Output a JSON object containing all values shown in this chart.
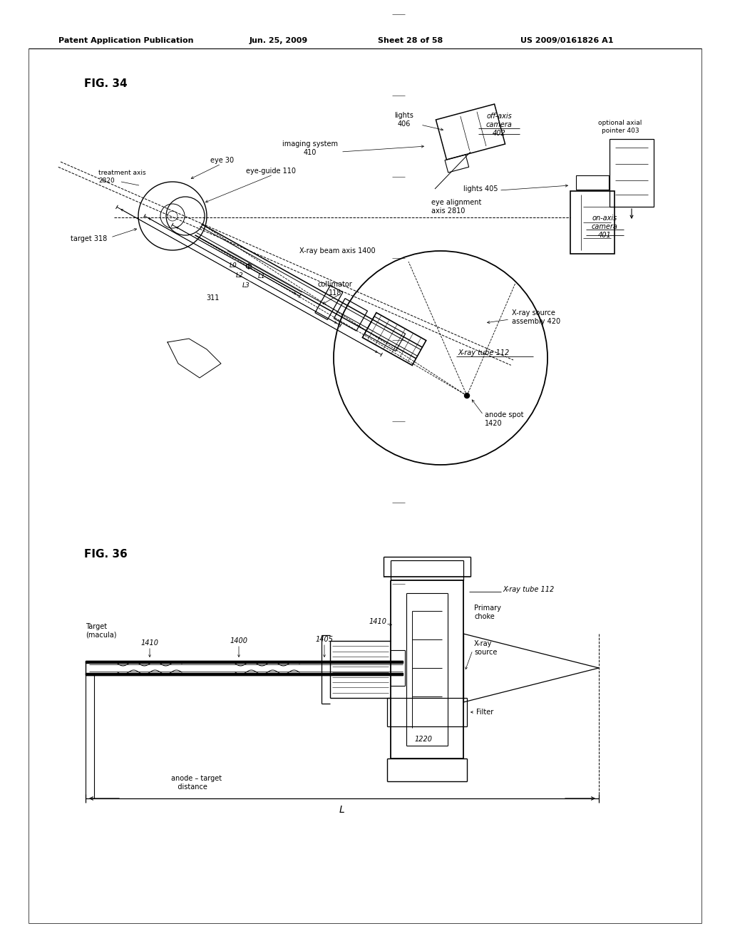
{
  "background_color": "#ffffff",
  "header_text": "Patent Application Publication",
  "header_date": "Jun. 25, 2009",
  "header_sheet": "Sheet 28 of 58",
  "header_patent": "US 2009/0161826 A1",
  "fig34_label": "FIG. 34",
  "fig36_label": "FIG. 36"
}
